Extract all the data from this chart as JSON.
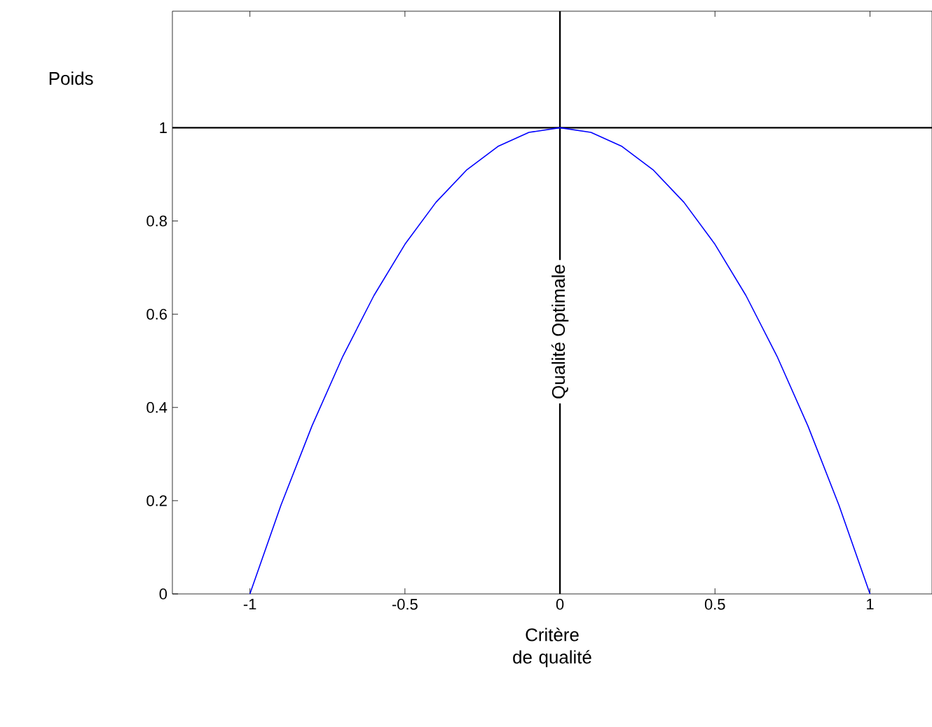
{
  "chart_data": {
    "type": "line",
    "xlabel": "Critère de qualité",
    "ylabel": "Poids",
    "x": [
      -1,
      -0.9,
      -0.8,
      -0.7,
      -0.6,
      -0.5,
      -0.4,
      -0.3,
      -0.2,
      -0.1,
      0,
      0.1,
      0.2,
      0.3,
      0.4,
      0.5,
      0.6,
      0.7,
      0.8,
      0.9,
      1
    ],
    "series": [
      {
        "color": "#0000ff",
        "values": [
          0,
          0.19,
          0.36,
          0.51,
          0.64,
          0.75,
          0.84,
          0.91,
          0.96,
          0.99,
          1,
          0.99,
          0.96,
          0.91,
          0.84,
          0.75,
          0.64,
          0.51,
          0.36,
          0.19,
          0
        ]
      }
    ],
    "xlim": [
      -1.25,
      1.2
    ],
    "ylim": [
      0,
      1.25
    ],
    "xticks": [
      -1,
      -0.5,
      0,
      0.5,
      1
    ],
    "yticks": [
      0,
      0.2,
      0.4,
      0.6,
      0.8,
      1
    ],
    "ref_lines": [
      {
        "axis": "y",
        "value": 1,
        "color": "#000000"
      },
      {
        "axis": "x",
        "value": 0,
        "label": "Qualité Optimale",
        "color": "#000000"
      }
    ],
    "marker": "none"
  }
}
